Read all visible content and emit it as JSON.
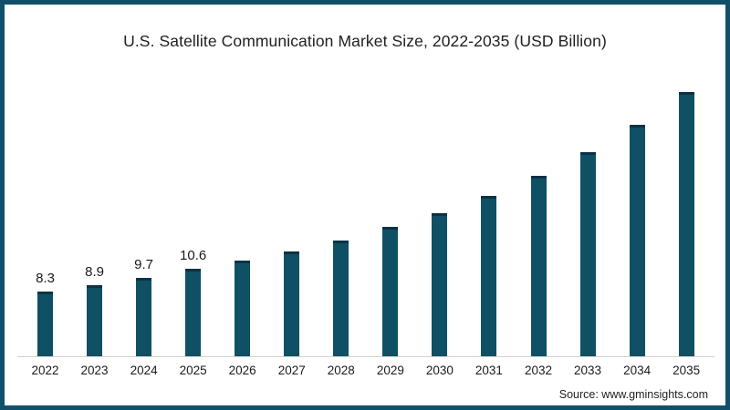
{
  "title": "U.S. Satellite Communication Market Size, 2022-2035 (USD Billion)",
  "source": "Source: www.gminsights.com",
  "colors": {
    "frame_border": "#11506b",
    "bar_fill": "#0f5064",
    "bar_cap": "#0b3344",
    "axis_line": "#d0d0d0",
    "background": "#ffffff"
  },
  "chart_data": {
    "type": "bar",
    "title": "U.S. Satellite Communication Market Size, 2022-2035 (USD Billion)",
    "unit": "USD Billion",
    "categories": [
      "2022",
      "2023",
      "2024",
      "2025",
      "2026",
      "2027",
      "2028",
      "2029",
      "2030",
      "2031",
      "2032",
      "2033",
      "2034",
      "2035"
    ],
    "values": [
      8.3,
      8.9,
      9.7,
      10.6,
      11.4,
      12.3,
      13.4,
      14.7,
      16.1,
      17.8,
      19.8,
      22.1,
      24.8,
      28.1
    ],
    "value_labels": [
      "8.3",
      "8.9",
      "9.7",
      "10.6",
      "",
      "",
      "",
      "",
      "",
      "",
      "",
      "",
      "",
      ""
    ],
    "xlabel": "",
    "ylabel": "",
    "ylim": [
      1.9,
      29.5
    ],
    "grid": false,
    "legend": false,
    "y_axis_shown": false,
    "bar_color": "#0f5064",
    "bar_cap_color": "#0b3344",
    "axis_line_color": "#d0d0d0"
  }
}
